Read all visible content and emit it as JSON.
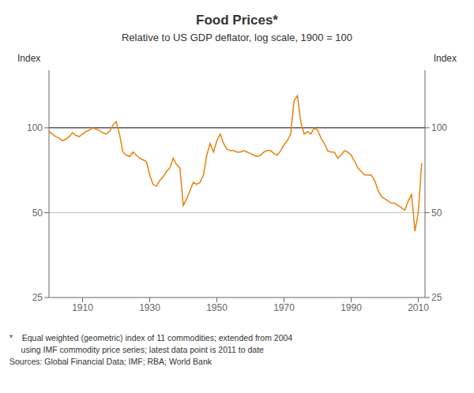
{
  "chart_data": {
    "type": "line",
    "title": "Food Prices*",
    "subtitle": "Relative to US GDP deflator, log scale, 1900 = 100",
    "ylabel": "Index",
    "y2label": "Index",
    "annotations": [
      "*    Equal weighted (geometric) index of 11 commodities; extended from 2004",
      "     using IMF commodity price series; latest data point is 2011 to date",
      "Sources: Global Financial Data; IMF; RBA; World Bank"
    ],
    "color": "#E8820C",
    "log": "y",
    "grid": false,
    "xlim": [
      1900,
      2012
    ],
    "xticks": [
      1910,
      1930,
      1950,
      1970,
      1990,
      2010
    ],
    "ylim": [
      25,
      160
    ],
    "yticks": [
      25,
      50,
      100
    ],
    "y2lim": [
      25,
      160
    ],
    "y2ticks": [
      25,
      50,
      100
    ],
    "hlines": [
      {
        "value": 100,
        "color": "#000000"
      },
      {
        "value": 50,
        "color": "#C0C0C0"
      }
    ],
    "x": [
      1900,
      1901,
      1902,
      1903,
      1904,
      1905,
      1906,
      1907,
      1908,
      1909,
      1910,
      1911,
      1912,
      1913,
      1914,
      1915,
      1916,
      1917,
      1918,
      1919,
      1920,
      1921,
      1922,
      1923,
      1924,
      1925,
      1926,
      1927,
      1928,
      1929,
      1930,
      1931,
      1932,
      1933,
      1934,
      1935,
      1936,
      1937,
      1938,
      1939,
      1940,
      1941,
      1942,
      1943,
      1944,
      1945,
      1946,
      1947,
      1948,
      1949,
      1950,
      1951,
      1952,
      1953,
      1954,
      1955,
      1956,
      1957,
      1958,
      1959,
      1960,
      1961,
      1962,
      1963,
      1964,
      1965,
      1966,
      1967,
      1968,
      1969,
      1970,
      1971,
      1972,
      1973,
      1974,
      1975,
      1976,
      1977,
      1978,
      1979,
      1980,
      1981,
      1982,
      1983,
      1984,
      1985,
      1986,
      1987,
      1988,
      1989,
      1990,
      1991,
      1992,
      1993,
      1994,
      1995,
      1996,
      1997,
      1998,
      1999,
      2000,
      2001,
      2002,
      2003,
      2004,
      2005,
      2006,
      2007,
      2008,
      2009,
      2010,
      2011
    ],
    "values": [
      97,
      95,
      93,
      92,
      90,
      91,
      93,
      96,
      94,
      93,
      95,
      97,
      98,
      100,
      99,
      98,
      96,
      95,
      97,
      102,
      105,
      95,
      82,
      80,
      79,
      82,
      80,
      78,
      77,
      76,
      68,
      63,
      62,
      65,
      67,
      70,
      72,
      78,
      74,
      72,
      53,
      56,
      60,
      64,
      63,
      64,
      68,
      80,
      88,
      82,
      90,
      95,
      88,
      84,
      83,
      83,
      82,
      82,
      83,
      82,
      81,
      80,
      79,
      80,
      82,
      83,
      83,
      81,
      80,
      83,
      87,
      90,
      95,
      125,
      130,
      105,
      95,
      97,
      95,
      100,
      98,
      92,
      88,
      83,
      82,
      82,
      78,
      80,
      83,
      82,
      80,
      76,
      72,
      70,
      68,
      68,
      68,
      65,
      60,
      57,
      56,
      55,
      54,
      54,
      53,
      52,
      51,
      55,
      58,
      43,
      50,
      75
    ]
  }
}
